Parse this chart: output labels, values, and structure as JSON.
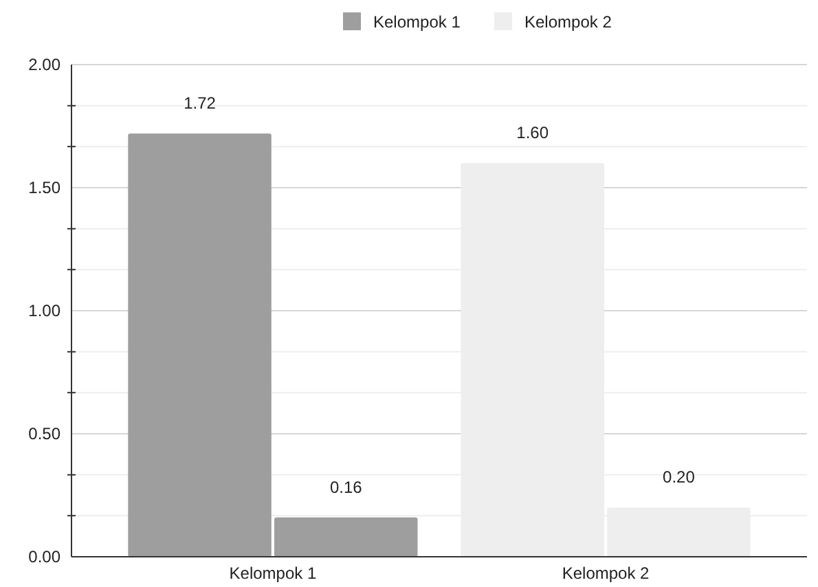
{
  "chart_data": {
    "type": "bar",
    "categories": [
      "Kelompok 1",
      "Kelompok 2"
    ],
    "series": [
      {
        "name": "Kelompok 1",
        "color": "#9e9e9e",
        "colors": [
          "#9e9e9e",
          "#eeeeee"
        ],
        "values": [
          1.72,
          1.6
        ],
        "value_labels": [
          "1.72",
          "1.60"
        ]
      },
      {
        "name": "Kelompok 2",
        "color": "#eeeeee",
        "colors": [
          "#9e9e9e",
          "#eeeeee"
        ],
        "values": [
          0.16,
          0.2
        ],
        "value_labels": [
          "0.16",
          "0.20"
        ]
      }
    ],
    "ylim": [
      0,
      2
    ],
    "yticks": [
      {
        "value": 0,
        "label": "0.00"
      },
      {
        "value": 0.167,
        "label": null
      },
      {
        "value": 0.333,
        "label": null
      },
      {
        "value": 0.5,
        "label": "0.50"
      },
      {
        "value": 0.667,
        "label": null
      },
      {
        "value": 0.833,
        "label": null
      },
      {
        "value": 1,
        "label": "1.00"
      },
      {
        "value": 1.167,
        "label": null
      },
      {
        "value": 1.333,
        "label": null
      },
      {
        "value": 1.5,
        "label": "1.50"
      },
      {
        "value": 1.667,
        "label": null
      },
      {
        "value": 1.833,
        "label": null
      },
      {
        "value": 2,
        "label": "2.00"
      }
    ],
    "grid": true,
    "legend": "top"
  }
}
